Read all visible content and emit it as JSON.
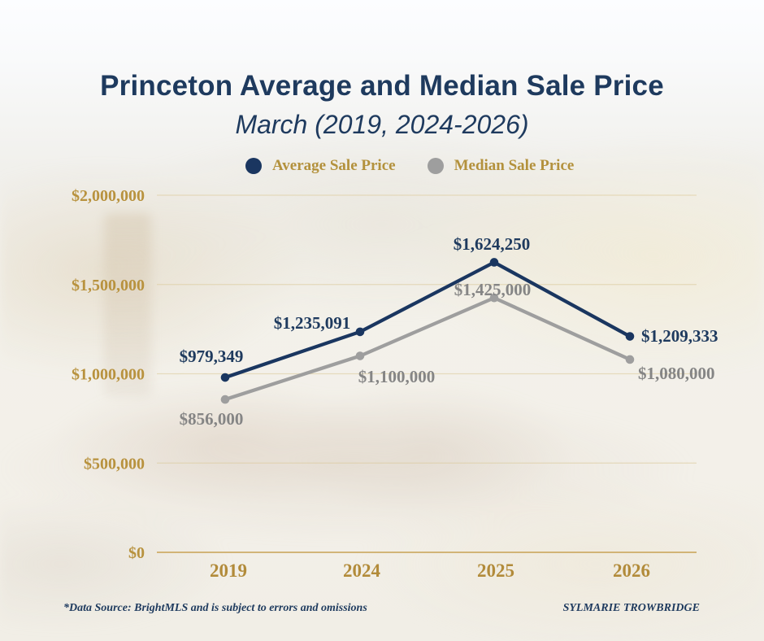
{
  "header": {
    "title": "Princeton Average and Median Sale Price",
    "subtitle": "March (2019, 2024-2026)"
  },
  "legend": [
    {
      "label": "Average Sale Price",
      "color": "#1a3660"
    },
    {
      "label": "Median Sale Price",
      "color": "#9e9e9e"
    }
  ],
  "colors": {
    "navy": "#1e3a5e",
    "gold_text": "#b8923e",
    "gold_axis_line": "#c8a253",
    "gridline": "#ddcda0",
    "median_gray_line": "#9e9e9e",
    "median_gray_label": "#858585"
  },
  "chart_data": {
    "type": "line",
    "title": "Princeton Average and Median Sale Price",
    "subtitle": "March (2019, 2024-2026)",
    "categories": [
      "2019",
      "2024",
      "2025",
      "2026"
    ],
    "series": [
      {
        "name": "Average Sale Price",
        "line_color": "#1a3660",
        "label_color": "#1e3a5e",
        "values": [
          979349,
          1235091,
          1624250,
          1209333
        ],
        "labels": [
          "$979,349",
          "$1,235,091",
          "$1,624,250",
          "$1,209,333"
        ]
      },
      {
        "name": "Median Sale Price",
        "line_color": "#9e9e9e",
        "label_color": "#858585",
        "values": [
          856000,
          1100000,
          1425000,
          1080000
        ],
        "labels": [
          "$856,000",
          "$1,100,000",
          "$1,425,000",
          "$1,080,000"
        ]
      }
    ],
    "y_ticks": [
      {
        "value": 2000000,
        "label": "$2,000,000"
      },
      {
        "value": 1500000,
        "label": "$1,500,000"
      },
      {
        "value": 1000000,
        "label": "$1,000,000"
      },
      {
        "value": 500000,
        "label": "$500,000"
      },
      {
        "value": 0,
        "label": "$0"
      }
    ],
    "ylim": [
      0,
      2000000
    ],
    "grid": true,
    "legend_position": "top",
    "xlabel": "",
    "ylabel": ""
  },
  "footer": {
    "source": "*Data Source: BrightMLS and is subject to errors and omissions",
    "credit": "SYLMARIE TROWBRIDGE"
  }
}
